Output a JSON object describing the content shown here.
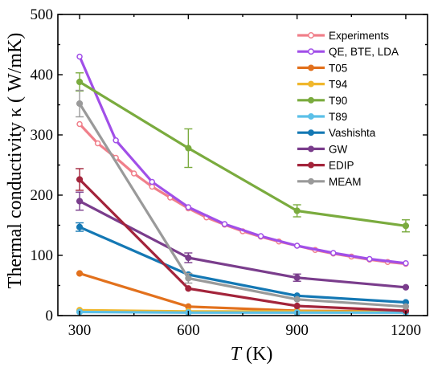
{
  "chart_data": {
    "type": "line",
    "xlabel_italic": "T",
    "xlabel_rest": " (K)",
    "ylabel": "Thermal conductivity κ ( W/mK)",
    "xlim": [
      240,
      1260
    ],
    "ylim": [
      0,
      500
    ],
    "xticks": [
      300,
      600,
      900,
      1200
    ],
    "yticks": [
      0,
      100,
      200,
      300,
      400,
      500
    ],
    "legend_position": "top-right",
    "grid": false,
    "series": [
      {
        "name": "Experiments",
        "color": "#f07f8a",
        "marker": "hollow",
        "x": [
          300,
          350,
          400,
          450,
          500,
          550,
          600,
          650,
          700,
          750,
          800,
          850,
          900,
          950,
          1000,
          1050,
          1100,
          1150,
          1200
        ],
        "y": [
          318,
          286,
          262,
          236,
          214,
          196,
          178,
          163,
          151,
          140,
          131,
          123,
          116,
          109,
          103,
          98,
          93,
          89,
          86
        ]
      },
      {
        "name": "QE, BTE, LDA",
        "color": "#a14fe8",
        "marker": "hollow",
        "x": [
          300,
          400,
          500,
          600,
          700,
          800,
          900,
          1000,
          1100,
          1200
        ],
        "y": [
          430,
          291,
          222,
          180,
          152,
          132,
          116,
          104,
          94,
          87
        ]
      },
      {
        "name": "T05",
        "color": "#e2711d",
        "marker": "filled",
        "x": [
          300,
          600,
          900,
          1200
        ],
        "y": [
          70,
          15,
          8,
          7
        ]
      },
      {
        "name": "T94",
        "color": "#f0b72c",
        "marker": "filled",
        "x": [
          300,
          600,
          900,
          1200
        ],
        "y": [
          9,
          7,
          7,
          6
        ]
      },
      {
        "name": "T90",
        "color": "#7aab3e",
        "marker": "filled",
        "x": [
          300,
          600,
          900,
          1200
        ],
        "y": [
          388,
          278,
          174,
          149
        ],
        "err": [
          15,
          32,
          10,
          10
        ]
      },
      {
        "name": "T89",
        "color": "#5bc0e8",
        "marker": "filled",
        "x": [
          300,
          600,
          900,
          1200
        ],
        "y": [
          6,
          5,
          5,
          5
        ]
      },
      {
        "name": "Vashishta",
        "color": "#1478b4",
        "marker": "filled",
        "x": [
          300,
          600,
          900,
          1200
        ],
        "y": [
          147,
          68,
          33,
          22
        ],
        "err": [
          7,
          0,
          0,
          0
        ]
      },
      {
        "name": "GW",
        "color": "#7a3d8c",
        "marker": "filled",
        "x": [
          300,
          600,
          900,
          1200
        ],
        "y": [
          190,
          96,
          63,
          47
        ],
        "err": [
          15,
          8,
          6,
          0
        ]
      },
      {
        "name": "EDIP",
        "color": "#a3243b",
        "marker": "filled",
        "x": [
          300,
          600,
          900,
          1200
        ],
        "y": [
          226,
          45,
          16,
          8
        ],
        "err": [
          18,
          0,
          0,
          0
        ]
      },
      {
        "name": "MEAM",
        "color": "#9a9a9a",
        "marker": "filled",
        "x": [
          300,
          600,
          900,
          1200
        ],
        "y": [
          352,
          62,
          27,
          15
        ],
        "err": [
          22,
          8,
          0,
          0
        ]
      }
    ]
  }
}
